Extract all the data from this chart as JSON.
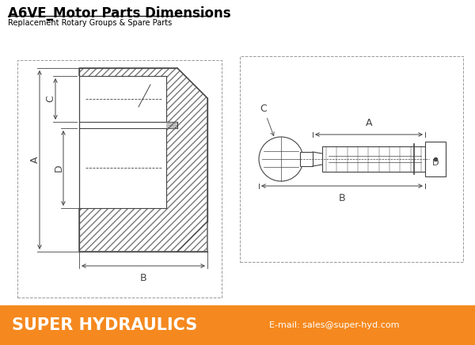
{
  "title": "A6VE_Motor Parts Dimensions",
  "subtitle": "Replacement Rotary Groups & Spare Parts",
  "footer_left": "SUPER HYDRAULICS",
  "footer_right": "E-mail: sales@super-hyd.com",
  "footer_bg": "#F5891F",
  "bg_color": "#FFFFFF",
  "border_color": "#999999",
  "line_color": "#444444",
  "hatch_color": "#777777",
  "fig_width": 6.0,
  "fig_height": 4.36,
  "dpi": 100
}
